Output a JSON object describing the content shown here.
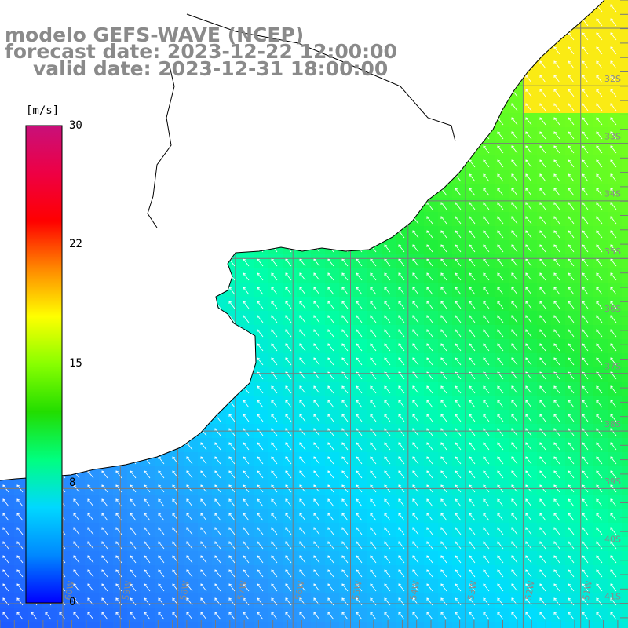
{
  "title": {
    "line1": "modelo GEFS-WAVE (NCEP)",
    "line2": "forecast date: 2023-12-22 12:00:00",
    "line3": "valid date: 2023-12-31 18:00:00"
  },
  "colorbar": {
    "unit": "[m/s]",
    "ticks": [
      "30",
      "22",
      "15",
      "8",
      "0"
    ],
    "colors": [
      "#0000ff",
      "#0088ff",
      "#00d8ff",
      "#00ff80",
      "#22dd00",
      "#88ff00",
      "#ffff00",
      "#ff8800",
      "#ff0000",
      "#ee0044",
      "#c8107a"
    ]
  },
  "lat_labels": [
    "32S",
    "33S",
    "34S",
    "35S",
    "36S",
    "37S",
    "38S",
    "39S",
    "40S",
    "41S"
  ],
  "lon_labels": [
    "60W",
    "59W",
    "58W",
    "57W",
    "56W",
    "55W",
    "54W",
    "53W",
    "52W",
    "51W"
  ],
  "colors": {
    "land": "#ffffff",
    "coast": "#000000",
    "grid": "#7a7a7a",
    "arrow": "#ffffff"
  }
}
